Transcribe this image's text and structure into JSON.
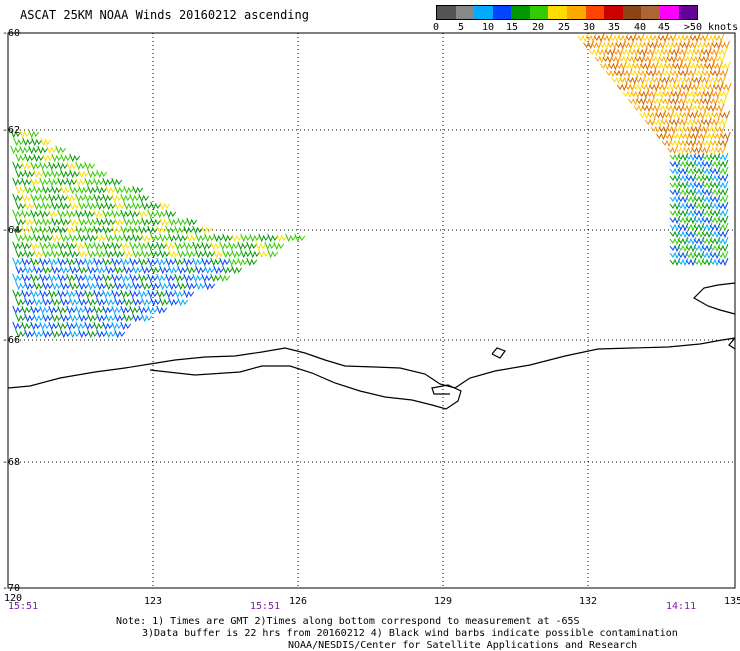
{
  "header": {
    "title": "ASCAT 25KM NOAA Winds 20160212 ascending"
  },
  "legend": {
    "colors": [
      "#555555",
      "#888888",
      "#00aaff",
      "#0044ff",
      "#009900",
      "#33cc00",
      "#ffdd00",
      "#ffaa00",
      "#ff4400",
      "#cc0000",
      "#8b4513",
      "#aa6633",
      "#ff00ff",
      "#660099"
    ],
    "labels": [
      "0",
      "5",
      "10",
      "15",
      "20",
      "25",
      "30",
      "35",
      "40",
      "45",
      ">50 knots"
    ]
  },
  "map": {
    "lat_labels": [
      "-60",
      "-62",
      "-64",
      "-66",
      "-68",
      "-70"
    ],
    "lon_labels": [
      "120",
      "123",
      "126",
      "129",
      "132",
      "135"
    ],
    "time_labels": [
      "15:51",
      "15:51",
      "14:11"
    ]
  },
  "notes": {
    "line1": "Note: 1) Times are GMT 2)Times along bottom correspond to measurement at -65S",
    "line2": "3)Data buffer is 22 hrs from 20160212 4) Black wind barbs indicate possible contamination",
    "line3": "NOAA/NESDIS/Center for Satellite Applications and Research"
  }
}
